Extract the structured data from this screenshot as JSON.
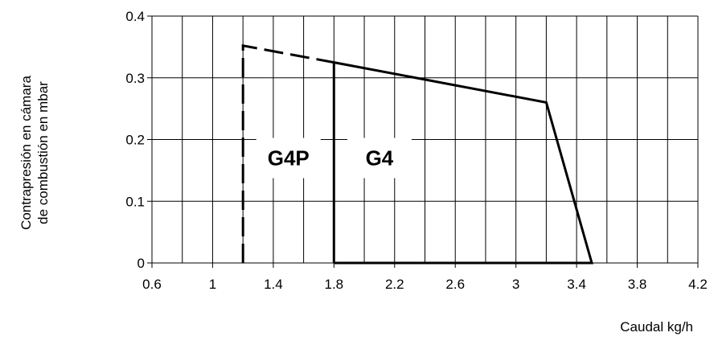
{
  "chart_data": {
    "type": "line",
    "xlabel": "Caudal kg/h",
    "ylabel_lines": [
      "Contrapresión en cámara",
      "de combustión en mbar"
    ],
    "xlim": [
      0.6,
      4.2
    ],
    "ylim": [
      0,
      0.4
    ],
    "x_ticks": [
      "0.6",
      "1",
      "1.4",
      "1.8",
      "2.2",
      "2.6",
      "3",
      "3.4",
      "3.8",
      "4.2"
    ],
    "y_ticks": [
      "0",
      "0.1",
      "0.2",
      "0.3",
      "0.4"
    ],
    "grid": true,
    "series": [
      {
        "name": "G4P",
        "style": "dashed",
        "points": [
          [
            1.2,
            0
          ],
          [
            1.2,
            0.352
          ],
          [
            1.8,
            0.325
          ]
        ]
      },
      {
        "name": "G4",
        "style": "solid",
        "points": [
          [
            1.8,
            0
          ],
          [
            1.8,
            0.325
          ],
          [
            3.2,
            0.26
          ],
          [
            3.5,
            0
          ],
          [
            1.8,
            0
          ]
        ]
      }
    ],
    "annotations": [
      {
        "text": "G4P",
        "x": 1.5,
        "y": 0.17
      },
      {
        "text": "G4",
        "x": 2.1,
        "y": 0.17
      }
    ]
  }
}
